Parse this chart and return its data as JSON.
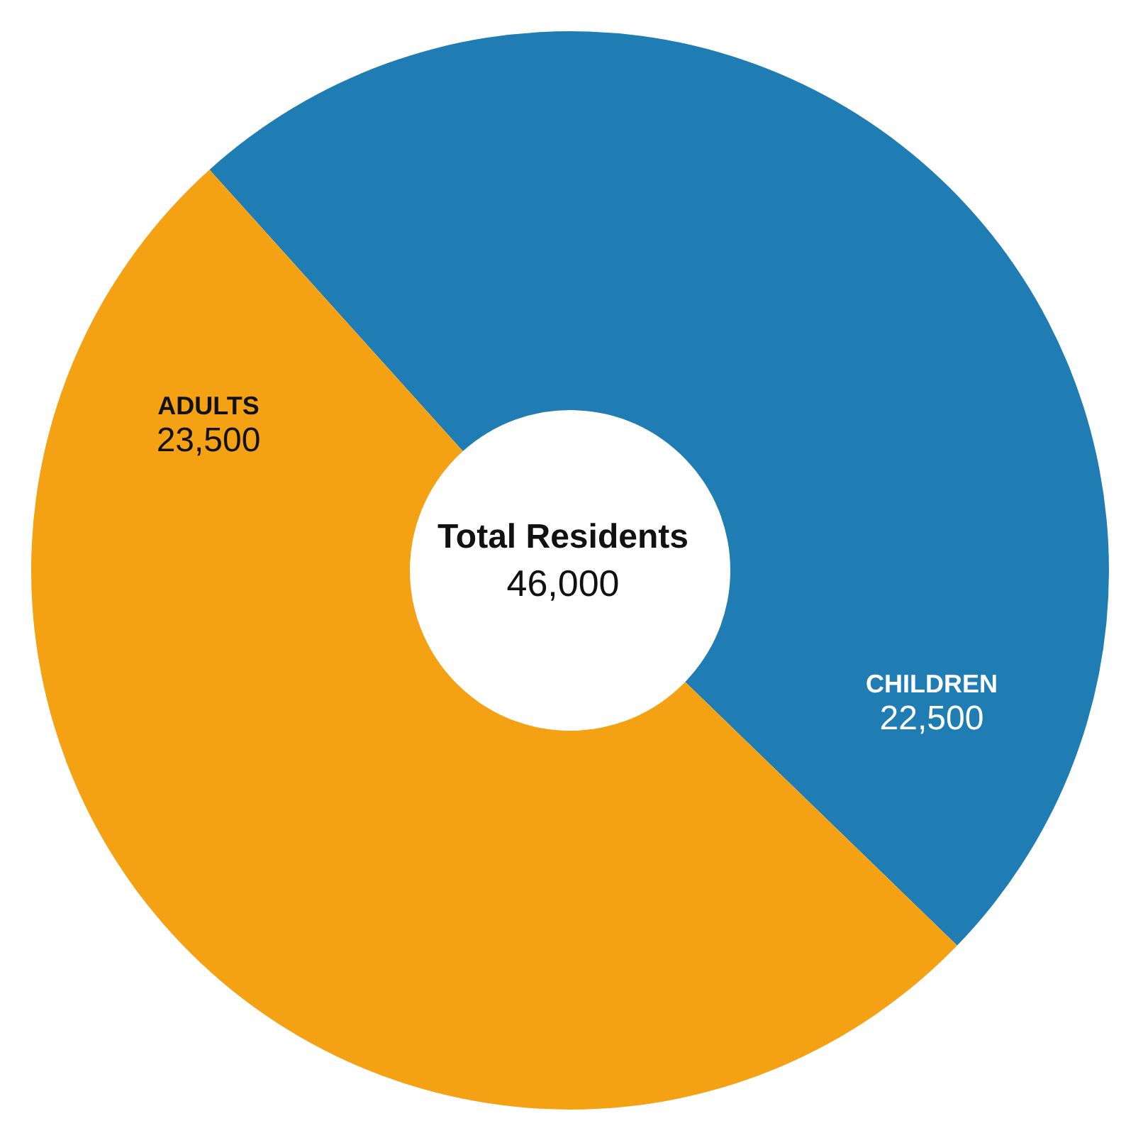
{
  "chart_data": {
    "type": "donut",
    "categories": [
      "CHILDREN",
      "ADULTS"
    ],
    "values": [
      22500,
      23500
    ],
    "colors": [
      "#1f7db3",
      "#f4a113"
    ],
    "value_labels": [
      "22,500",
      "23,500"
    ],
    "annotations": [
      "Total Residents",
      "46,000"
    ]
  }
}
